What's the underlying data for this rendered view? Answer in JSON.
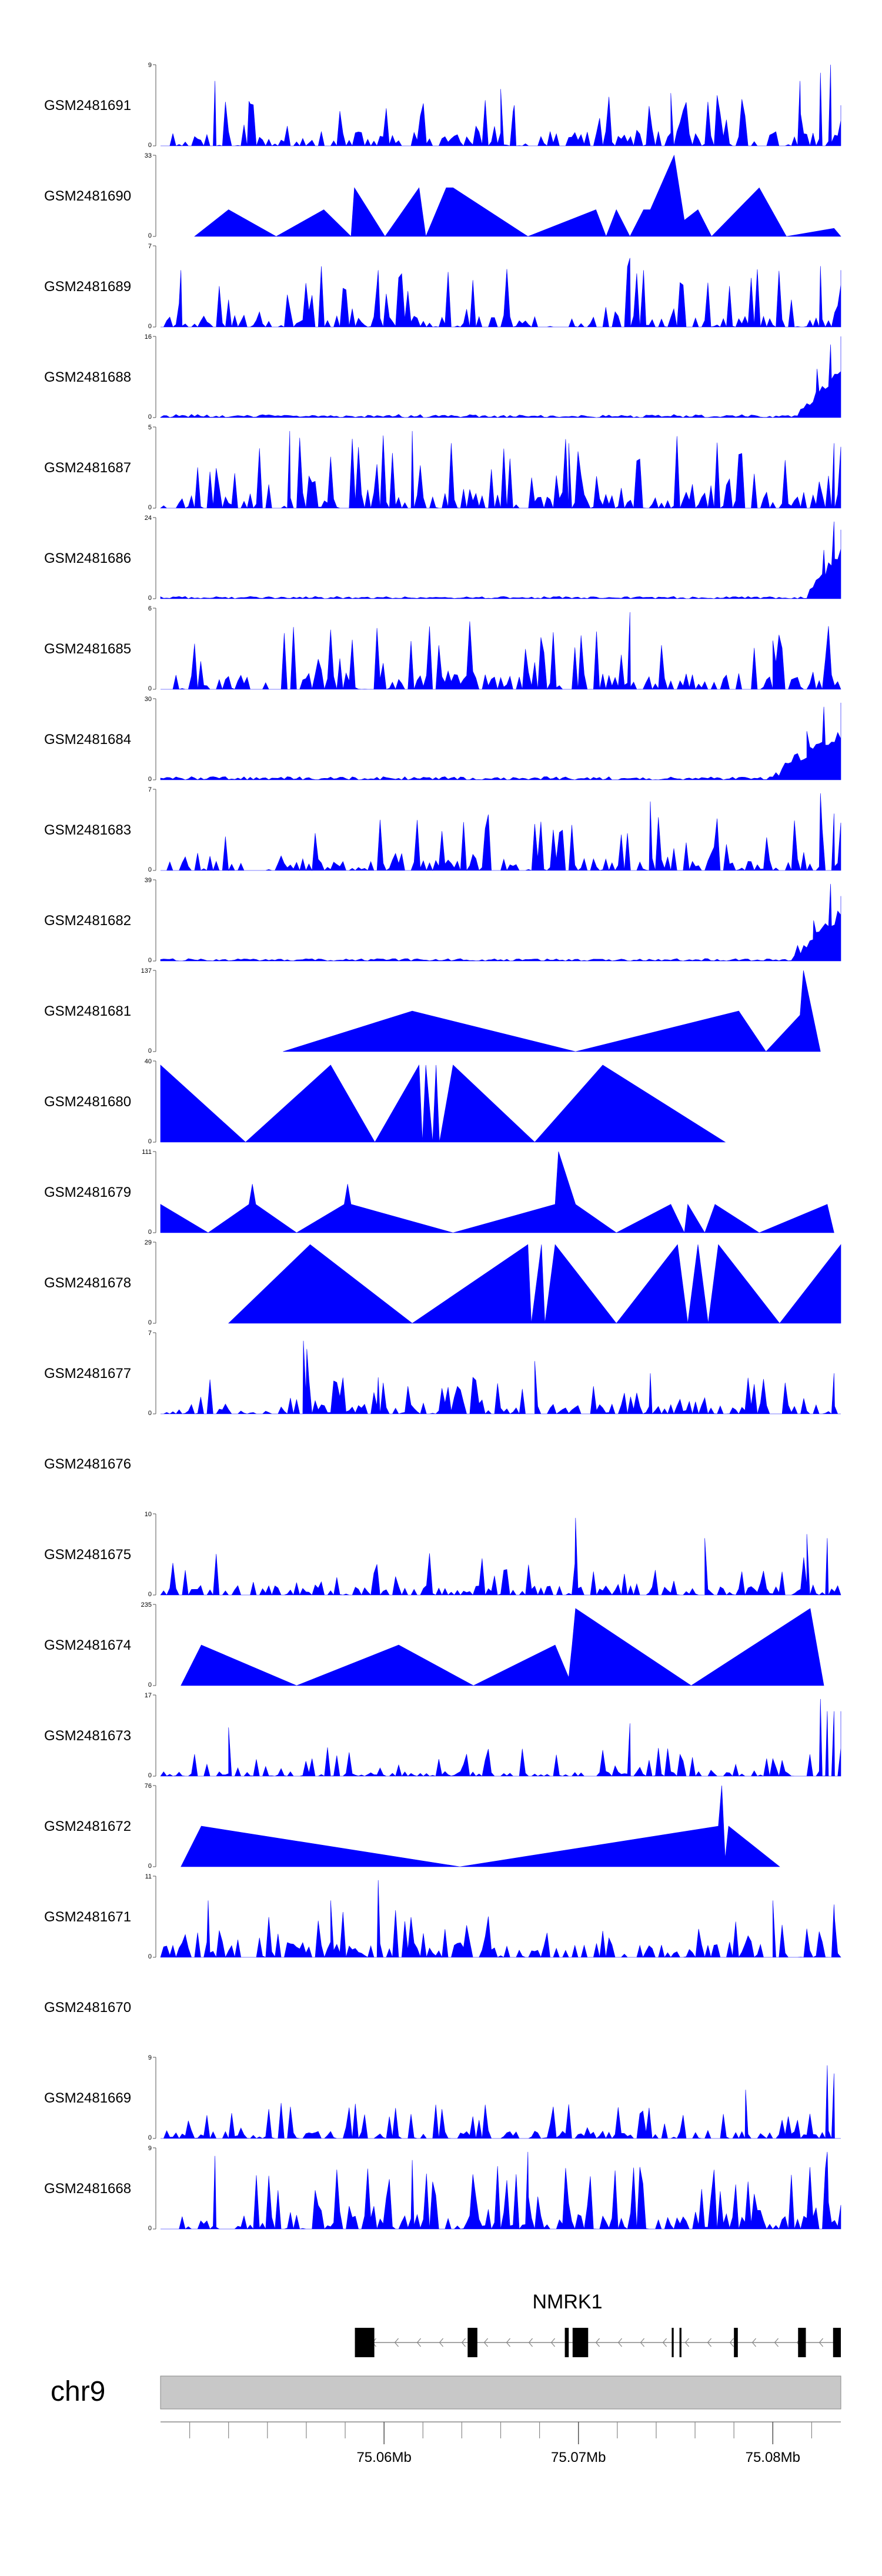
{
  "chart_data": {
    "type": "area",
    "title": "",
    "fill_color": "#0000ff",
    "gene_color": "#000000",
    "ideogram_color": "#c8c8c8",
    "x_range_mb": [
      75.0485,
      75.0835
    ],
    "tracks": [
      {
        "name": "GSM2481691",
        "ymax": 9,
        "type": "dense",
        "seed": 11,
        "bg": 0.18,
        "spike": 0.45,
        "pts": [
          [
            0.08,
            0.8
          ],
          [
            0.13,
            0.55
          ],
          [
            0.5,
            0.7
          ],
          [
            0.52,
            0.5
          ],
          [
            0.75,
            0.65
          ],
          [
            0.94,
            0.8
          ],
          [
            0.97,
            0.9
          ],
          [
            0.985,
            1.0
          ],
          [
            1.0,
            0.5
          ]
        ]
      },
      {
        "name": "GSM2481690",
        "ymax": 33,
        "type": "tri",
        "pts": [
          [
            0.05,
            0
          ],
          [
            0.1,
            0.33
          ],
          [
            0.17,
            0
          ],
          [
            0.24,
            0.33
          ],
          [
            0.28,
            0
          ],
          [
            0.285,
            0.6
          ],
          [
            0.33,
            0
          ],
          [
            0.38,
            0.6
          ],
          [
            0.39,
            0
          ],
          [
            0.42,
            0.6
          ],
          [
            0.43,
            0.6
          ],
          [
            0.54,
            0
          ],
          [
            0.64,
            0.33
          ],
          [
            0.655,
            0
          ],
          [
            0.67,
            0.33
          ],
          [
            0.69,
            0
          ],
          [
            0.71,
            0.33
          ],
          [
            0.72,
            0.33
          ],
          [
            0.755,
            1.0
          ],
          [
            0.77,
            0.2
          ],
          [
            0.79,
            0.33
          ],
          [
            0.81,
            0
          ],
          [
            0.88,
            0.6
          ],
          [
            0.92,
            0
          ],
          [
            0.99,
            0.1
          ],
          [
            1.0,
            0
          ]
        ]
      },
      {
        "name": "GSM2481689",
        "ymax": 7,
        "type": "dense",
        "seed": 23,
        "bg": 0.15,
        "spike": 0.6,
        "pts": [
          [
            0.03,
            0.7
          ],
          [
            0.32,
            0.7
          ],
          [
            0.69,
            0.85
          ],
          [
            0.71,
            0.7
          ],
          [
            0.97,
            0.75
          ],
          [
            1.0,
            0.7
          ]
        ]
      },
      {
        "name": "GSM2481688",
        "ymax": 16,
        "type": "lowramp",
        "seed": 31,
        "bg": 0.03,
        "spike": 0.08,
        "tail": 0.94,
        "pts": [
          [
            0.965,
            0.6
          ],
          [
            0.985,
            0.9
          ],
          [
            1.0,
            1.0
          ]
        ]
      },
      {
        "name": "GSM2481687",
        "ymax": 5,
        "type": "dense",
        "seed": 37,
        "bg": 0.2,
        "spike": 0.7,
        "pts": [
          [
            0.19,
            0.95
          ],
          [
            0.37,
            0.95
          ],
          [
            0.6,
            0.8
          ],
          [
            0.99,
            0.8
          ]
        ]
      },
      {
        "name": "GSM2481686",
        "ymax": 24,
        "type": "lowramp",
        "seed": 41,
        "bg": 0.025,
        "spike": 0.06,
        "tail": 0.95,
        "pts": [
          [
            0.975,
            0.6
          ],
          [
            0.99,
            0.95
          ],
          [
            1.0,
            0.85
          ]
        ]
      },
      {
        "name": "GSM2481685",
        "ymax": 6,
        "type": "dense",
        "seed": 43,
        "bg": 0.2,
        "spike": 0.65,
        "pts": [
          [
            0.69,
            0.95
          ],
          [
            0.9,
            0.6
          ]
        ]
      },
      {
        "name": "GSM2481684",
        "ymax": 30,
        "type": "lowramp",
        "seed": 47,
        "bg": 0.04,
        "spike": 0.08,
        "tail": 0.9,
        "pts": [
          [
            0.95,
            0.6
          ],
          [
            0.975,
            0.9
          ],
          [
            1.0,
            0.95
          ]
        ]
      },
      {
        "name": "GSM2481683",
        "ymax": 7,
        "type": "dense",
        "seed": 53,
        "bg": 0.15,
        "spike": 0.55,
        "pts": [
          [
            0.72,
            0.85
          ],
          [
            0.97,
            0.95
          ],
          [
            0.99,
            0.7
          ]
        ]
      },
      {
        "name": "GSM2481682",
        "ymax": 39,
        "type": "lowramp",
        "seed": 59,
        "bg": 0.03,
        "spike": 0.06,
        "tail": 0.93,
        "pts": [
          [
            0.96,
            0.5
          ],
          [
            0.985,
            0.95
          ],
          [
            1.0,
            0.8
          ]
        ]
      },
      {
        "name": "GSM2481681",
        "ymax": 137,
        "type": "tri",
        "pts": [
          [
            0.18,
            0
          ],
          [
            0.37,
            0.5
          ],
          [
            0.61,
            0
          ],
          [
            0.85,
            0.5
          ],
          [
            0.89,
            0
          ],
          [
            0.94,
            0.45
          ],
          [
            0.945,
            1.0
          ],
          [
            0.97,
            0
          ]
        ]
      },
      {
        "name": "GSM2481680",
        "ymax": 40,
        "type": "tri",
        "pts": [
          [
            0.0,
            0.95
          ],
          [
            0.125,
            0
          ],
          [
            0.25,
            0.95
          ],
          [
            0.315,
            0
          ],
          [
            0.38,
            0.95
          ],
          [
            0.385,
            0
          ],
          [
            0.39,
            0.95
          ],
          [
            0.4,
            0
          ],
          [
            0.405,
            0.95
          ],
          [
            0.41,
            0
          ],
          [
            0.43,
            0.95
          ],
          [
            0.55,
            0
          ],
          [
            0.65,
            0.95
          ],
          [
            0.83,
            0
          ]
        ]
      },
      {
        "name": "GSM2481679",
        "ymax": 111,
        "type": "tri",
        "pts": [
          [
            0.0,
            0.35
          ],
          [
            0.07,
            0
          ],
          [
            0.13,
            0.35
          ],
          [
            0.135,
            0.6
          ],
          [
            0.14,
            0.35
          ],
          [
            0.2,
            0
          ],
          [
            0.27,
            0.35
          ],
          [
            0.275,
            0.6
          ],
          [
            0.28,
            0.35
          ],
          [
            0.43,
            0
          ],
          [
            0.58,
            0.35
          ],
          [
            0.585,
            1.0
          ],
          [
            0.61,
            0.35
          ],
          [
            0.67,
            0
          ],
          [
            0.75,
            0.35
          ],
          [
            0.77,
            0
          ],
          [
            0.775,
            0.35
          ],
          [
            0.8,
            0
          ],
          [
            0.815,
            0.35
          ],
          [
            0.88,
            0
          ],
          [
            0.98,
            0.35
          ],
          [
            0.99,
            0
          ]
        ]
      },
      {
        "name": "GSM2481678",
        "ymax": 29,
        "type": "tri",
        "pts": [
          [
            0.1,
            0
          ],
          [
            0.22,
            0.97
          ],
          [
            0.37,
            0
          ],
          [
            0.54,
            0.97
          ],
          [
            0.545,
            0
          ],
          [
            0.56,
            0.97
          ],
          [
            0.565,
            0
          ],
          [
            0.58,
            0.97
          ],
          [
            0.67,
            0
          ],
          [
            0.76,
            0.97
          ],
          [
            0.775,
            0
          ],
          [
            0.79,
            0.97
          ],
          [
            0.805,
            0
          ],
          [
            0.82,
            0.97
          ],
          [
            0.91,
            0
          ],
          [
            1.0,
            0.97
          ],
          [
            1.0,
            0
          ]
        ]
      },
      {
        "name": "GSM2481677",
        "ymax": 7,
        "type": "dense",
        "seed": 67,
        "bg": 0.12,
        "spike": 0.35,
        "pts": [
          [
            0.21,
            0.9
          ],
          [
            0.215,
            0.8
          ],
          [
            0.32,
            0.45
          ],
          [
            0.55,
            0.65
          ],
          [
            0.72,
            0.5
          ],
          [
            0.99,
            0.5
          ]
        ]
      },
      {
        "name": "GSM2481676",
        "ymax": null,
        "type": "empty",
        "pts": []
      },
      {
        "name": "GSM2481675",
        "ymax": 10,
        "type": "dense",
        "seed": 71,
        "bg": 0.12,
        "spike": 0.4,
        "pts": [
          [
            0.61,
            0.95
          ],
          [
            0.8,
            0.7
          ],
          [
            0.95,
            0.75
          ],
          [
            0.98,
            0.7
          ]
        ]
      },
      {
        "name": "GSM2481674",
        "ymax": 235,
        "type": "tri",
        "pts": [
          [
            0.03,
            0
          ],
          [
            0.06,
            0.5
          ],
          [
            0.2,
            0
          ],
          [
            0.35,
            0.5
          ],
          [
            0.46,
            0
          ],
          [
            0.58,
            0.5
          ],
          [
            0.6,
            0.1
          ],
          [
            0.605,
            0.5
          ],
          [
            0.61,
            0.95
          ],
          [
            0.78,
            0
          ],
          [
            0.955,
            0.95
          ],
          [
            0.975,
            0
          ]
        ]
      },
      {
        "name": "GSM2481673",
        "ymax": 17,
        "type": "dense",
        "seed": 79,
        "bg": 0.06,
        "spike": 0.3,
        "pts": [
          [
            0.1,
            0.6
          ],
          [
            0.69,
            0.65
          ],
          [
            0.97,
            0.95
          ],
          [
            0.98,
            0.8
          ],
          [
            0.99,
            0.8
          ],
          [
            1.0,
            0.8
          ]
        ]
      },
      {
        "name": "GSM2481672",
        "ymax": 76,
        "type": "tri",
        "pts": [
          [
            0.03,
            0
          ],
          [
            0.06,
            0.5
          ],
          [
            0.44,
            0
          ],
          [
            0.82,
            0.5
          ],
          [
            0.825,
            1.0
          ],
          [
            0.83,
            0.1
          ],
          [
            0.835,
            0.5
          ],
          [
            0.91,
            0
          ]
        ]
      },
      {
        "name": "GSM2481671",
        "ymax": 11,
        "type": "dense",
        "seed": 83,
        "bg": 0.2,
        "spike": 0.4,
        "pts": [
          [
            0.07,
            0.7
          ],
          [
            0.25,
            0.7
          ],
          [
            0.32,
            0.95
          ],
          [
            0.9,
            0.7
          ],
          [
            0.99,
            0.65
          ]
        ]
      },
      {
        "name": "GSM2481670",
        "ymax": null,
        "type": "empty",
        "pts": []
      },
      {
        "name": "GSM2481669",
        "ymax": 9,
        "type": "dense",
        "seed": 89,
        "bg": 0.1,
        "spike": 0.35,
        "pts": [
          [
            0.86,
            0.6
          ],
          [
            0.98,
            0.9
          ],
          [
            0.99,
            0.8
          ]
        ]
      },
      {
        "name": "GSM2481668",
        "ymax": 9,
        "type": "dense",
        "seed": 97,
        "bg": 0.18,
        "spike": 0.6,
        "pts": [
          [
            0.08,
            0.9
          ],
          [
            0.37,
            0.85
          ],
          [
            0.54,
            0.95
          ],
          [
            0.98,
            0.95
          ]
        ]
      }
    ],
    "gene": {
      "name": "NMRK1",
      "strand": "-",
      "exons_mb": [
        [
          75.0585,
          75.0595
        ],
        [
          75.0643,
          75.0648
        ],
        [
          75.0693,
          75.0695
        ],
        [
          75.0697,
          75.0705
        ],
        [
          75.0748,
          75.0749
        ],
        [
          75.0752,
          75.0753
        ],
        [
          75.078,
          75.0782
        ],
        [
          75.0813,
          75.0817
        ],
        [
          75.0831,
          75.0835
        ]
      ]
    },
    "ideogram": {
      "chromosome": "chr9"
    },
    "axis": {
      "major_ticks_mb": [
        75.06,
        75.07,
        75.08
      ],
      "major_labels": [
        "75.06Mb",
        "75.07Mb",
        "75.08Mb"
      ],
      "minor_tick_step_mb": 0.002
    }
  }
}
